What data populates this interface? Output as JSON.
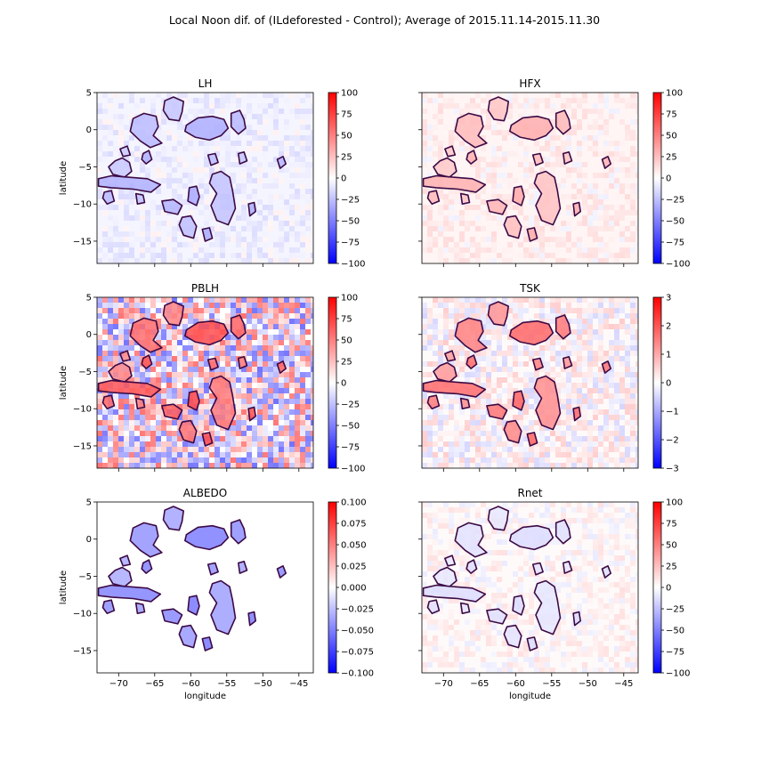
{
  "figure": {
    "suptitle": "Local Noon dif. of (ILdeforested - Control); Average of 2015.11.14-2015.11.30",
    "xlabel": "longitude",
    "ylabel": "latitude"
  },
  "chart_data": [
    {
      "type": "heatmap",
      "title": "LH",
      "colormap": "bwr",
      "xlim": [
        -73,
        -43
      ],
      "ylim": [
        -18,
        5
      ],
      "xticks": [
        "−70",
        "−65",
        "−60",
        "−55",
        "−50",
        "−45"
      ],
      "yticks": [
        "5",
        "0",
        "−5",
        "−10",
        "−15"
      ],
      "clim": [
        -100,
        100
      ],
      "cbar_ticks": [
        "100",
        "75",
        "50",
        "25",
        "0",
        "−25",
        "−50",
        "−75",
        "−100"
      ],
      "show_xticklabels": false,
      "show_ylabel": true
    },
    {
      "type": "heatmap",
      "title": "HFX",
      "colormap": "bwr",
      "xlim": [
        -73,
        -43
      ],
      "ylim": [
        -18,
        5
      ],
      "xticks": [
        "−70",
        "−65",
        "−60",
        "−55",
        "−50",
        "−45"
      ],
      "yticks": [
        "5",
        "0",
        "−5",
        "−10",
        "−15"
      ],
      "clim": [
        -100,
        100
      ],
      "cbar_ticks": [
        "100",
        "75",
        "50",
        "25",
        "0",
        "−25",
        "−50",
        "−75",
        "−100"
      ],
      "show_xticklabels": false,
      "show_ylabel": false
    },
    {
      "type": "heatmap",
      "title": "PBLH",
      "colormap": "bwr",
      "xlim": [
        -73,
        -43
      ],
      "ylim": [
        -18,
        5
      ],
      "xticks": [
        "−70",
        "−65",
        "−60",
        "−55",
        "−50",
        "−45"
      ],
      "yticks": [
        "5",
        "0",
        "−5",
        "−10",
        "−15"
      ],
      "clim": [
        -100,
        100
      ],
      "cbar_ticks": [
        "100",
        "75",
        "50",
        "25",
        "0",
        "−25",
        "−50",
        "−75",
        "−100"
      ],
      "show_xticklabels": false,
      "show_ylabel": true
    },
    {
      "type": "heatmap",
      "title": "TSK",
      "colormap": "bwr",
      "xlim": [
        -73,
        -43
      ],
      "ylim": [
        -18,
        5
      ],
      "xticks": [
        "−70",
        "−65",
        "−60",
        "−55",
        "−50",
        "−45"
      ],
      "yticks": [
        "5",
        "0",
        "−5",
        "−10",
        "−15"
      ],
      "clim": [
        -3,
        3
      ],
      "cbar_ticks": [
        "3",
        "2",
        "1",
        "0",
        "−1",
        "−2",
        "−3"
      ],
      "show_xticklabels": false,
      "show_ylabel": false
    },
    {
      "type": "heatmap",
      "title": "ALBEDO",
      "colormap": "bwr",
      "xlim": [
        -73,
        -43
      ],
      "ylim": [
        -18,
        5
      ],
      "xticks": [
        "−70",
        "−65",
        "−60",
        "−55",
        "−50",
        "−45"
      ],
      "yticks": [
        "5",
        "0",
        "−5",
        "−10",
        "−15"
      ],
      "clim": [
        -0.1,
        0.1
      ],
      "cbar_ticks": [
        "0.100",
        "0.075",
        "0.050",
        "0.025",
        "0.000",
        "−0.025",
        "−0.050",
        "−0.075",
        "−0.100"
      ],
      "show_xticklabels": true,
      "show_ylabel": true
    },
    {
      "type": "heatmap",
      "title": "Rnet",
      "colormap": "bwr",
      "xlim": [
        -73,
        -43
      ],
      "ylim": [
        -18,
        5
      ],
      "xticks": [
        "−70",
        "−65",
        "−60",
        "−55",
        "−50",
        "−45"
      ],
      "yticks": [
        "5",
        "0",
        "−5",
        "−10",
        "−15"
      ],
      "clim": [
        -100,
        100
      ],
      "cbar_ticks": [
        "100",
        "75",
        "50",
        "25",
        "0",
        "−25",
        "−50",
        "−75",
        "−100"
      ],
      "show_xticklabels": true,
      "show_ylabel": false
    }
  ],
  "contours": [
    [
      [
        -70.5,
        -4.2
      ],
      [
        -69.5,
        -3.8
      ],
      [
        -68.5,
        -4.4
      ],
      [
        -68.2,
        -5.6
      ],
      [
        -69.2,
        -6.4
      ],
      [
        -70.8,
        -6.0
      ],
      [
        -71.4,
        -5.0
      ]
    ],
    [
      [
        -72.8,
        -6.6
      ],
      [
        -71.0,
        -6.2
      ],
      [
        -68.5,
        -6.4
      ],
      [
        -66.0,
        -6.6
      ],
      [
        -64.2,
        -7.4
      ],
      [
        -65.5,
        -8.4
      ],
      [
        -68.0,
        -8.0
      ],
      [
        -71.0,
        -7.8
      ],
      [
        -72.8,
        -7.6
      ]
    ],
    [
      [
        -68.0,
        1.5
      ],
      [
        -66.5,
        2.2
      ],
      [
        -64.8,
        1.8
      ],
      [
        -64.5,
        0.4
      ],
      [
        -65.2,
        -0.8
      ],
      [
        -64.0,
        -1.8
      ],
      [
        -65.6,
        -2.4
      ],
      [
        -67.0,
        -1.5
      ],
      [
        -68.4,
        -0.2
      ]
    ],
    [
      [
        -63.6,
        3.9
      ],
      [
        -62.4,
        4.4
      ],
      [
        -61.0,
        3.8
      ],
      [
        -61.2,
        2.4
      ],
      [
        -61.6,
        1.2
      ],
      [
        -63.0,
        1.4
      ],
      [
        -63.8,
        2.6
      ]
    ],
    [
      [
        -60.6,
        0.6
      ],
      [
        -59.0,
        1.6
      ],
      [
        -57.0,
        1.8
      ],
      [
        -55.4,
        1.4
      ],
      [
        -54.8,
        0.2
      ],
      [
        -55.8,
        -0.8
      ],
      [
        -57.4,
        -1.4
      ],
      [
        -59.4,
        -1.0
      ],
      [
        -60.8,
        -0.2
      ]
    ],
    [
      [
        -54.4,
        2.2
      ],
      [
        -53.2,
        2.6
      ],
      [
        -52.6,
        1.4
      ],
      [
        -52.4,
        0.2
      ],
      [
        -53.4,
        -0.6
      ],
      [
        -54.4,
        0.4
      ]
    ],
    [
      [
        -57.0,
        -6.0
      ],
      [
        -55.8,
        -5.6
      ],
      [
        -54.6,
        -6.4
      ],
      [
        -54.2,
        -8.2
      ],
      [
        -53.8,
        -10.6
      ],
      [
        -54.8,
        -12.8
      ],
      [
        -56.4,
        -12.2
      ],
      [
        -57.2,
        -10.2
      ],
      [
        -56.4,
        -8.6
      ],
      [
        -57.4,
        -7.2
      ]
    ],
    [
      [
        -60.2,
        -7.8
      ],
      [
        -59.2,
        -7.6
      ],
      [
        -58.8,
        -9.0
      ],
      [
        -59.2,
        -10.2
      ],
      [
        -60.4,
        -9.6
      ]
    ],
    [
      [
        -64.0,
        -9.6
      ],
      [
        -62.4,
        -9.4
      ],
      [
        -61.2,
        -10.2
      ],
      [
        -61.8,
        -11.4
      ],
      [
        -63.6,
        -11.0
      ]
    ],
    [
      [
        -61.2,
        -11.8
      ],
      [
        -60.0,
        -11.6
      ],
      [
        -59.2,
        -13.0
      ],
      [
        -59.6,
        -14.6
      ],
      [
        -61.0,
        -14.2
      ],
      [
        -61.6,
        -12.8
      ]
    ],
    [
      [
        -69.8,
        -2.6
      ],
      [
        -68.8,
        -2.2
      ],
      [
        -68.4,
        -3.4
      ],
      [
        -69.4,
        -3.6
      ]
    ],
    [
      [
        -66.6,
        -3.2
      ],
      [
        -65.8,
        -2.8
      ],
      [
        -65.4,
        -4.0
      ],
      [
        -66.2,
        -4.6
      ],
      [
        -66.8,
        -4.0
      ]
    ],
    [
      [
        -57.6,
        -3.4
      ],
      [
        -56.6,
        -3.2
      ],
      [
        -56.2,
        -4.4
      ],
      [
        -57.2,
        -4.8
      ]
    ],
    [
      [
        -53.4,
        -3.2
      ],
      [
        -52.6,
        -3.0
      ],
      [
        -52.2,
        -4.2
      ],
      [
        -53.2,
        -4.6
      ]
    ],
    [
      [
        -52.0,
        -10.0
      ],
      [
        -51.2,
        -9.8
      ],
      [
        -51.0,
        -11.0
      ],
      [
        -51.8,
        -11.6
      ]
    ],
    [
      [
        -72.0,
        -8.4
      ],
      [
        -71.0,
        -8.2
      ],
      [
        -70.6,
        -9.6
      ],
      [
        -71.6,
        -10.0
      ],
      [
        -72.2,
        -9.2
      ]
    ],
    [
      [
        -67.6,
        -8.6
      ],
      [
        -66.6,
        -8.8
      ],
      [
        -66.4,
        -9.8
      ],
      [
        -67.4,
        -10.0
      ]
    ],
    [
      [
        -58.4,
        -13.4
      ],
      [
        -57.4,
        -13.2
      ],
      [
        -57.0,
        -14.6
      ],
      [
        -58.0,
        -15.0
      ]
    ],
    [
      [
        -48.0,
        -4.0
      ],
      [
        -47.2,
        -3.6
      ],
      [
        -46.8,
        -4.6
      ],
      [
        -47.6,
        -5.2
      ]
    ]
  ]
}
